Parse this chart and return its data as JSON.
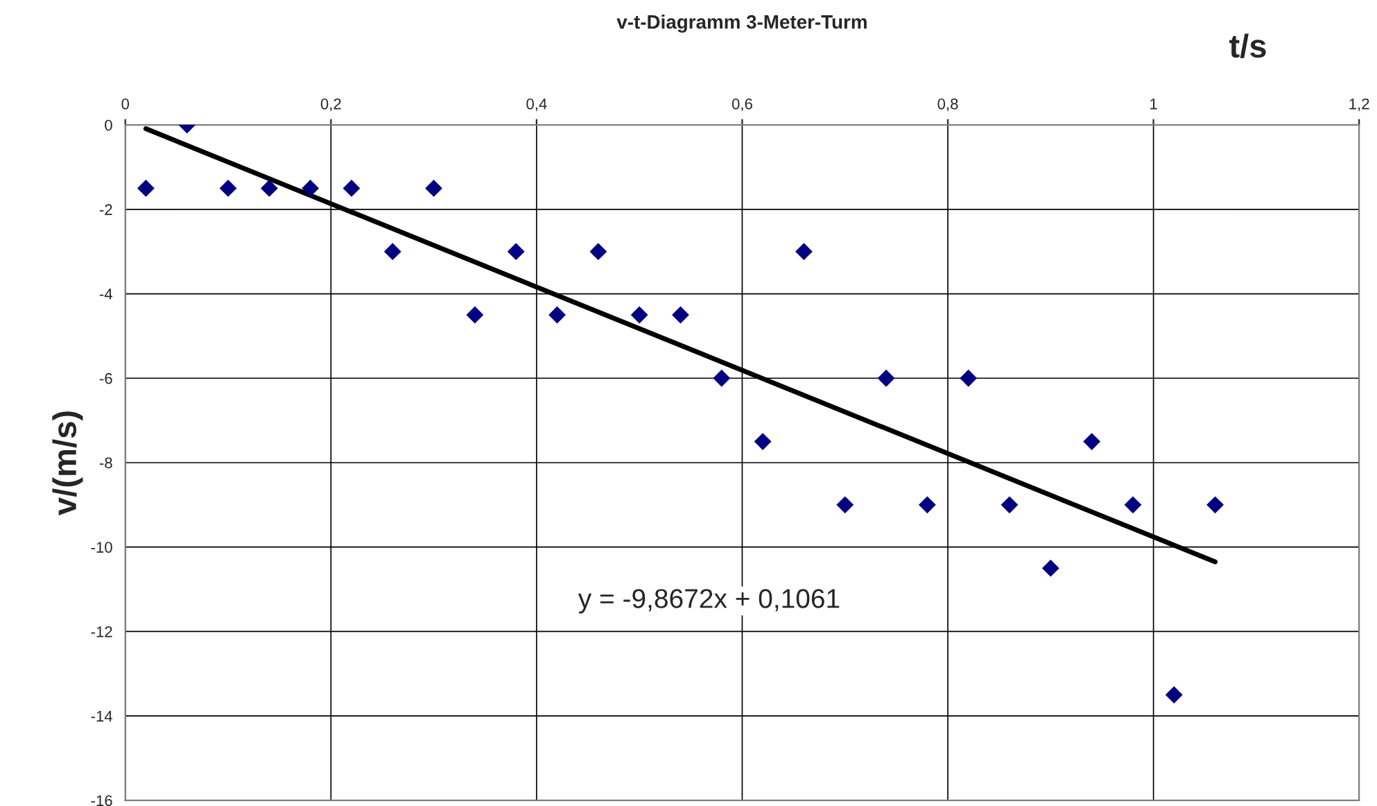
{
  "chart_data": {
    "type": "scatter",
    "title": "v-t-Diagramm 3-Meter-Turm",
    "xlabel": "t/s",
    "ylabel": "v/(m/s)",
    "series": [
      {
        "color": "#000080",
        "marker": "diamond",
        "x": [
          0.02,
          0.06,
          0.1,
          0.14,
          0.18,
          0.22,
          0.26,
          0.3,
          0.34,
          0.38,
          0.42,
          0.46,
          0.5,
          0.54,
          0.58,
          0.62,
          0.66,
          0.7,
          0.74,
          0.78,
          0.82,
          0.86,
          0.9,
          0.94,
          0.98,
          1.02,
          1.06
        ],
        "values": [
          -1.5,
          0,
          -1.5,
          -1.5,
          -1.5,
          -1.5,
          -3,
          -1.5,
          -4.5,
          -3,
          -4.5,
          -3,
          -4.5,
          -4.5,
          -6,
          -7.5,
          -3,
          -9,
          -6,
          -9,
          -6,
          -9,
          -10.5,
          -7.5,
          -9,
          -13.5,
          -9
        ]
      },
      {
        "type": "line",
        "color": "#000000",
        "line_style": "solid",
        "marker": "none",
        "x": [
          0.02,
          1.06
        ],
        "values": [
          -0.09,
          -10.35
        ]
      }
    ],
    "annotations": [
      "y = -9,8672x + 0,1061"
    ],
    "xlim": [
      0,
      1.2
    ],
    "xticks": [
      0,
      {
        "value": 0.2,
        "label": "0,2"
      },
      {
        "value": 0.4,
        "label": "0,4"
      },
      {
        "value": 0.6,
        "label": "0,6"
      },
      {
        "value": 0.8,
        "label": "0,8"
      },
      1,
      {
        "value": 1.2,
        "label": "1,2"
      }
    ],
    "ylim": [
      -16,
      0
    ],
    "yticks": [
      0,
      -2,
      -4,
      -6,
      -8,
      -10,
      -12,
      -14,
      -16
    ],
    "grid": true,
    "legend": false
  }
}
